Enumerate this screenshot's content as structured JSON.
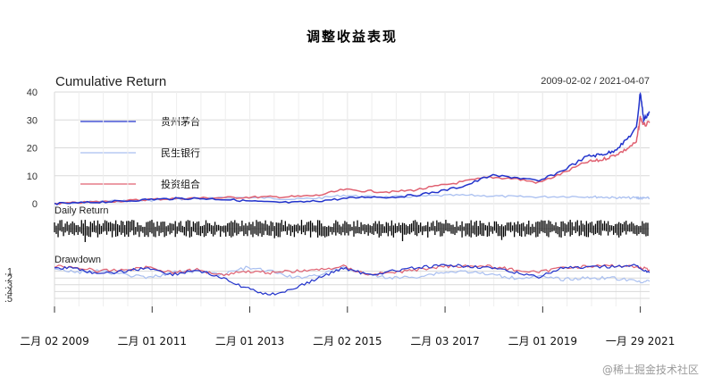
{
  "title": "调整收益表现",
  "watermark": "@稀土掘金技术社区",
  "colors": {
    "moutai": "#2233cc",
    "minsheng": "#a9bff0",
    "portfolio": "#e06272",
    "bars": "#000000",
    "grid": "#d9d9d9"
  },
  "chart_data": [
    {
      "panel": "cumulative",
      "type": "line",
      "title": "Cumulative Return",
      "date_range": "2009-02-02 / 2021-04-07",
      "ylim": [
        0,
        40
      ],
      "yticks": [
        0,
        10,
        20,
        30,
        40
      ],
      "legend_position": "top-left",
      "x": [
        2009.08,
        2009.5,
        2010.0,
        2010.5,
        2011.0,
        2011.5,
        2012.0,
        2012.5,
        2013.0,
        2013.5,
        2014.0,
        2014.5,
        2015.0,
        2015.5,
        2016.0,
        2016.5,
        2017.0,
        2017.5,
        2018.0,
        2018.5,
        2019.0,
        2019.5,
        2020.0,
        2020.25,
        2020.5,
        2020.75,
        2021.0,
        2021.08,
        2021.15,
        2021.27
      ],
      "series": [
        {
          "name": "贵州茅台",
          "color_key": "moutai",
          "values": [
            0,
            0.2,
            0.6,
            0.9,
            1.5,
            1.8,
            1.9,
            1.6,
            1.0,
            0.5,
            0.4,
            1.0,
            1.8,
            2.5,
            2.3,
            3.1,
            4.5,
            6.5,
            10.0,
            9.5,
            8.0,
            12.0,
            17.0,
            17.5,
            18.5,
            22.0,
            27.0,
            40.0,
            30.0,
            33.0
          ]
        },
        {
          "name": "民生银行",
          "color_key": "minsheng",
          "values": [
            0,
            0.3,
            0.8,
            1.0,
            1.2,
            1.5,
            1.8,
            2.0,
            2.2,
            2.0,
            1.6,
            2.0,
            3.0,
            2.5,
            2.4,
            2.6,
            2.9,
            3.0,
            2.8,
            2.5,
            2.4,
            2.6,
            2.5,
            2.4,
            2.2,
            2.1,
            2.1,
            2.0,
            2.0,
            2.0
          ]
        },
        {
          "name": "投资组合",
          "color_key": "portfolio",
          "values": [
            0,
            0.3,
            0.7,
            1.0,
            1.5,
            1.8,
            2.0,
            2.1,
            2.3,
            2.4,
            2.5,
            3.0,
            5.0,
            4.5,
            4.2,
            5.0,
            6.5,
            8.0,
            9.5,
            9.0,
            7.5,
            11.0,
            15.0,
            15.5,
            17.0,
            19.0,
            22.0,
            31.0,
            28.0,
            29.0
          ]
        }
      ]
    },
    {
      "panel": "daily",
      "type": "bar",
      "title": "Daily Return"
    },
    {
      "panel": "drawdown",
      "type": "line",
      "title": "Drawdown",
      "yticks": [
        ".1",
        ".2",
        ".3",
        ".4",
        ".5"
      ],
      "x": [
        2009.08,
        2009.5,
        2010.0,
        2010.5,
        2011.0,
        2011.5,
        2012.0,
        2012.5,
        2013.0,
        2013.5,
        2014.0,
        2014.5,
        2015.0,
        2015.5,
        2016.0,
        2016.5,
        2017.0,
        2017.5,
        2018.0,
        2018.5,
        2019.0,
        2019.5,
        2020.0,
        2020.5,
        2021.0,
        2021.27
      ],
      "series": [
        {
          "name": "贵州茅台",
          "color_key": "moutai",
          "values": [
            -0.05,
            -0.05,
            -0.15,
            -0.1,
            -0.05,
            -0.15,
            -0.08,
            -0.2,
            -0.35,
            -0.45,
            -0.35,
            -0.2,
            -0.05,
            -0.15,
            -0.1,
            -0.05,
            -0.02,
            -0.02,
            -0.05,
            -0.12,
            -0.18,
            -0.05,
            -0.05,
            -0.03,
            -0.02,
            -0.12
          ]
        },
        {
          "name": "民生银行",
          "color_key": "minsheng",
          "values": [
            -0.05,
            -0.12,
            -0.1,
            -0.15,
            -0.2,
            -0.12,
            -0.1,
            -0.15,
            -0.05,
            -0.1,
            -0.2,
            -0.15,
            -0.05,
            -0.15,
            -0.2,
            -0.18,
            -0.12,
            -0.1,
            -0.15,
            -0.2,
            -0.18,
            -0.22,
            -0.2,
            -0.2,
            -0.25,
            -0.25
          ]
        },
        {
          "name": "投资组合",
          "color_key": "portfolio",
          "values": [
            -0.03,
            -0.04,
            -0.1,
            -0.08,
            -0.04,
            -0.12,
            -0.08,
            -0.15,
            -0.1,
            -0.12,
            -0.1,
            -0.08,
            -0.03,
            -0.15,
            -0.12,
            -0.08,
            -0.03,
            -0.02,
            -0.03,
            -0.08,
            -0.12,
            -0.04,
            -0.03,
            -0.02,
            -0.03,
            -0.08
          ]
        }
      ]
    }
  ],
  "x_axis": {
    "range": [
      2009.08,
      2021.27
    ],
    "ticks": [
      {
        "label": "二月 02 2009",
        "value": 2009.08
      },
      {
        "label": "二月 01 2011",
        "value": 2011.08
      },
      {
        "label": "二月 01 2013",
        "value": 2013.08
      },
      {
        "label": "二月 02 2015",
        "value": 2015.08
      },
      {
        "label": "二月 03 2017",
        "value": 2017.08
      },
      {
        "label": "二月 01 2019",
        "value": 2019.08
      },
      {
        "label": "一月 29 2021",
        "value": 2021.08
      }
    ]
  }
}
